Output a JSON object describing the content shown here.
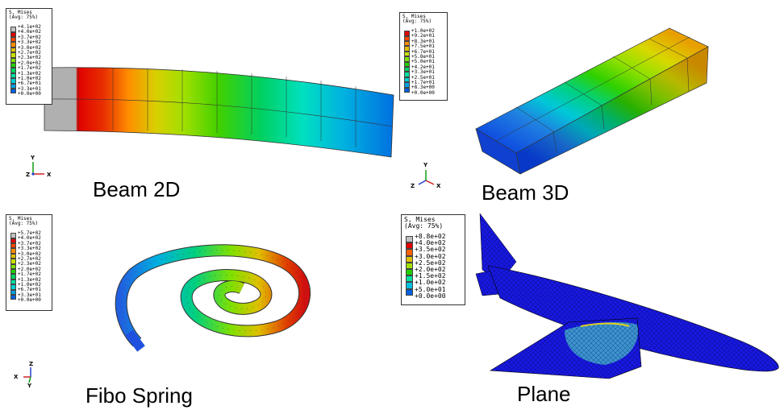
{
  "panels": {
    "beam2d": {
      "caption": "Beam 2D",
      "legend": {
        "title_line1": "S, Mises",
        "title_line2": "(Avg: 75%)",
        "values": [
          "+4.1e+02",
          "+4.0e+02",
          "+3.7e+02",
          "+3.3e+02",
          "+3.0e+02",
          "+2.7e+02",
          "+2.3e+02",
          "+2.0e+02",
          "+1.7e+02",
          "+1.3e+02",
          "+1.0e+02",
          "+6.7e+01",
          "+3.3e+01",
          "+0.0e+00"
        ]
      },
      "axes": {
        "y": "Y",
        "z": "Z",
        "x": "X"
      }
    },
    "beam3d": {
      "caption": "Beam 3D",
      "legend": {
        "title_line1": "S, Mises",
        "title_line2": "(Avg: 75%)",
        "values": [
          "+1.0e+02",
          "+9.2e+01",
          "+8.3e+01",
          "+7.5e+01",
          "+6.7e+01",
          "+5.8e+01",
          "+5.0e+01",
          "+4.2e+01",
          "+3.3e+01",
          "+2.5e+01",
          "+1.7e+01",
          "+8.3e+00",
          "+0.0e+00"
        ]
      },
      "axes": {
        "y": "Y",
        "z": "Z",
        "x": "X"
      }
    },
    "spring": {
      "caption": "Fibo Spring",
      "legend": {
        "title_line1": "S, Mises",
        "title_line2": "(Avg: 75%)",
        "values": [
          "+5.7e+02",
          "+4.0e+02",
          "+3.7e+02",
          "+3.3e+02",
          "+3.0e+02",
          "+2.7e+02",
          "+2.3e+02",
          "+2.0e+02",
          "+1.7e+02",
          "+1.3e+02",
          "+1.0e+02",
          "+6.7e+01",
          "+3.3e+01",
          "+0.0e+00"
        ]
      },
      "axes": {
        "z": "Z",
        "x": "X",
        "y": "Y"
      }
    },
    "plane": {
      "caption": "Plane",
      "legend": {
        "title_line1": "S, Mises",
        "title_line2": "(Avg: 75%)",
        "values": [
          "+8.8e+02",
          "+4.0e+02",
          "+3.5e+02",
          "+3.0e+02",
          "+2.5e+02",
          "+2.0e+02",
          "+1.5e+02",
          "+1.0e+02",
          "+5.0e+01",
          "+0.0e+00"
        ]
      }
    }
  },
  "colors": {
    "contour_14": [
      "#c0c0c0",
      "#e00000",
      "#ff4500",
      "#ff8c00",
      "#e0c000",
      "#c8e000",
      "#80e000",
      "#20d000",
      "#00d060",
      "#00e0a0",
      "#00d0d0",
      "#00a0e0",
      "#0060e0",
      "#0000e0"
    ],
    "contour_13": [
      "#e00000",
      "#ff4500",
      "#ff8c00",
      "#e0c000",
      "#c8e000",
      "#80e000",
      "#20d000",
      "#00d060",
      "#00e0a0",
      "#00d0d0",
      "#00a0e0",
      "#0060e0",
      "#0000e0"
    ],
    "contour_10": [
      "#c0c0c0",
      "#e00000",
      "#ff6000",
      "#e0c000",
      "#a0e000",
      "#20d000",
      "#00e0a0",
      "#00c0e0",
      "#0060e0",
      "#0000e0"
    ]
  }
}
